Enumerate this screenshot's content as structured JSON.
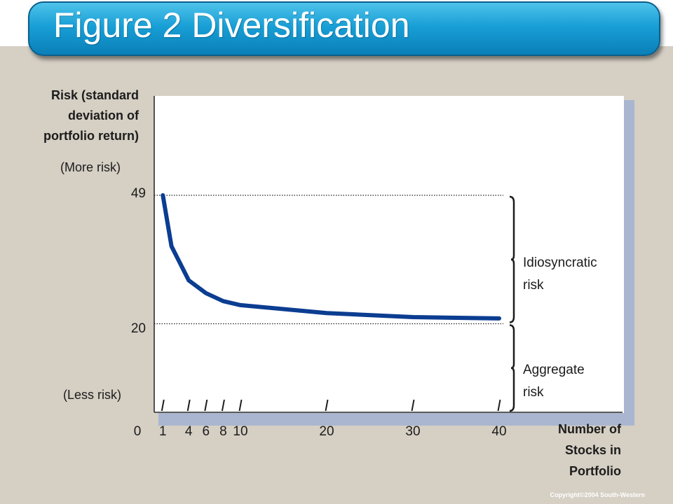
{
  "title": "Figure 2 Diversification",
  "copyright": "Copyright©2004  South-Western",
  "chart_data": {
    "type": "line",
    "title": "Figure 2 Diversification",
    "ylabel": [
      "Risk (standard",
      "deviation of",
      "portfolio return)"
    ],
    "xlabel": [
      "Number of",
      "Stocks in",
      "Portfolio"
    ],
    "y_annotations": {
      "top": "(More risk)",
      "bottom": "(Less risk)"
    },
    "x_ticks": [
      0,
      1,
      4,
      6,
      8,
      10,
      20,
      30,
      40
    ],
    "y_ticks": [
      20,
      49
    ],
    "xlim": [
      0,
      40
    ],
    "ylim": [
      0,
      49
    ],
    "grid": false,
    "reference_lines": [
      49,
      20
    ],
    "series": [
      {
        "color": "#0b3d91",
        "x": [
          1,
          2,
          4,
          6,
          8,
          10,
          20,
          30,
          40
        ],
        "y": [
          49,
          37.5,
          29.8,
          26.9,
          25.1,
          24.2,
          22.4,
          21.5,
          21.2
        ]
      }
    ],
    "annotations": [
      {
        "lines": [
          "Idiosyncratic",
          "risk"
        ],
        "from": 20,
        "to": 49
      },
      {
        "lines": [
          "Aggregate",
          "risk"
        ],
        "from": 0,
        "to": 20
      }
    ]
  }
}
